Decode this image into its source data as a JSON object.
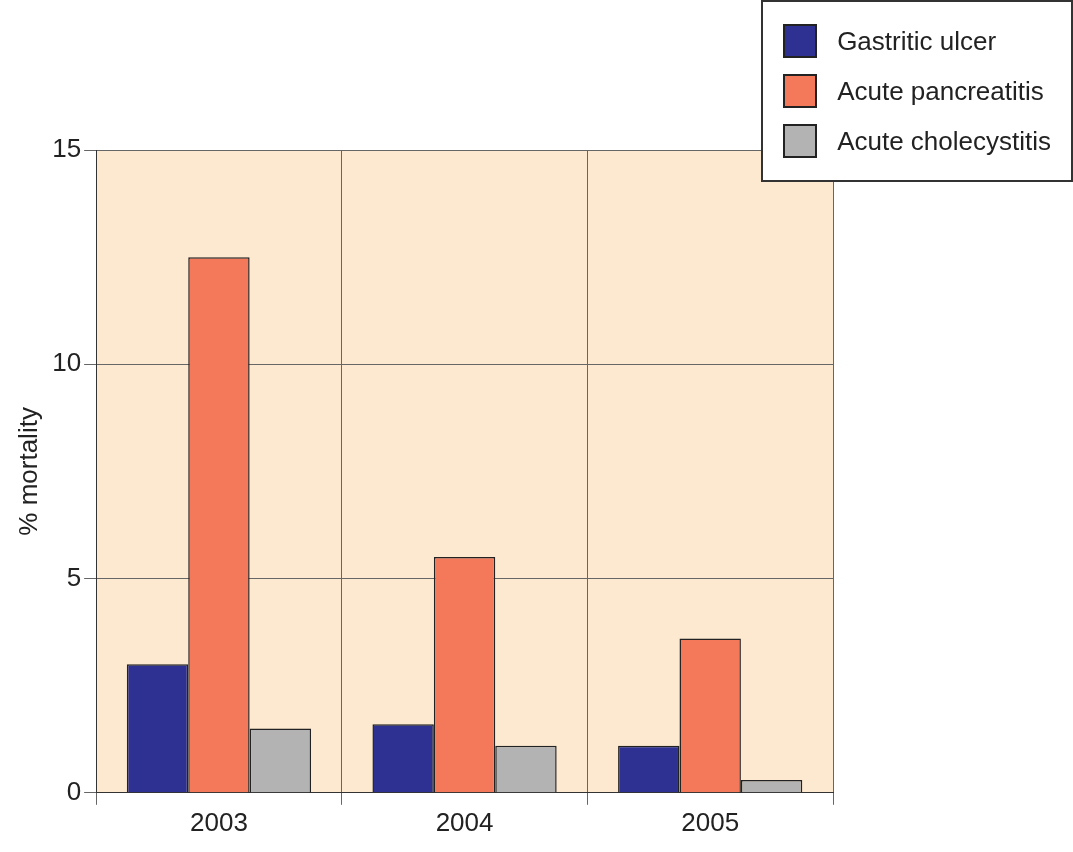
{
  "chart_data": {
    "type": "bar",
    "ylabel": "% mortality",
    "categories": [
      "2003",
      "2004",
      "2005"
    ],
    "series": [
      {
        "name": "Gastritic ulcer",
        "color": "#2e3192",
        "values": [
          3.0,
          1.6,
          1.1
        ]
      },
      {
        "name": "Acute pancreatitis",
        "color": "#f4795b",
        "values": [
          12.5,
          5.5,
          3.6
        ]
      },
      {
        "name": "Acute cholecystitis",
        "color": "#b3b3b3",
        "values": [
          1.5,
          1.1,
          0.3
        ]
      }
    ],
    "ylim": [
      0,
      15
    ],
    "yticks": [
      0,
      5,
      10,
      15
    ],
    "grid": true,
    "legend": "top right"
  }
}
